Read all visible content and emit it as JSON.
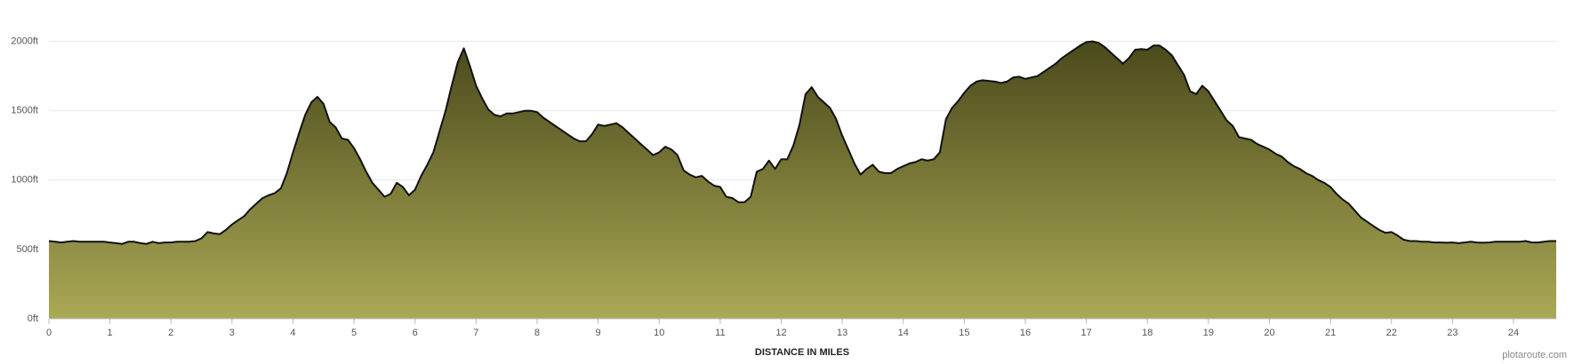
{
  "chart_data": {
    "type": "area",
    "x_label": "DISTANCE IN MILES",
    "credit": "plotaroute.com",
    "xlim": [
      0,
      24.7
    ],
    "ylim": [
      0,
      2100
    ],
    "xticks": [
      0,
      1,
      2,
      3,
      4,
      5,
      6,
      7,
      8,
      9,
      10,
      11,
      12,
      13,
      14,
      15,
      16,
      17,
      18,
      19,
      20,
      21,
      22,
      23,
      24
    ],
    "yticks": [
      {
        "value": 0,
        "label": "0ft"
      },
      {
        "value": 500,
        "label": "500ft"
      },
      {
        "value": 1000,
        "label": "1000ft"
      },
      {
        "value": 1500,
        "label": "1500ft"
      },
      {
        "value": 2000,
        "label": "2000ft"
      }
    ],
    "grid": true,
    "line_color": "#111111",
    "fill_top": "#4a491b",
    "fill_bottom": "#aaa955",
    "x": [
      0,
      0.1,
      0.2,
      0.3,
      0.4,
      0.5,
      0.6,
      0.7,
      0.8,
      0.9,
      1,
      1.1,
      1.2,
      1.3,
      1.4,
      1.5,
      1.6,
      1.7,
      1.8,
      1.9,
      2,
      2.1,
      2.2,
      2.3,
      2.4,
      2.5,
      2.6,
      2.7,
      2.8,
      2.9,
      3,
      3.1,
      3.2,
      3.3,
      3.4,
      3.5,
      3.6,
      3.7,
      3.8,
      3.9,
      4,
      4.1,
      4.2,
      4.3,
      4.4,
      4.5,
      4.6,
      4.7,
      4.8,
      4.9,
      5,
      5.1,
      5.2,
      5.3,
      5.4,
      5.5,
      5.6,
      5.7,
      5.8,
      5.9,
      6,
      6.1,
      6.2,
      6.3,
      6.4,
      6.5,
      6.6,
      6.7,
      6.8,
      6.9,
      7,
      7.1,
      7.2,
      7.3,
      7.4,
      7.5,
      7.6,
      7.7,
      7.8,
      7.9,
      8,
      8.1,
      8.2,
      8.3,
      8.4,
      8.5,
      8.6,
      8.7,
      8.8,
      8.9,
      9,
      9.1,
      9.2,
      9.3,
      9.4,
      9.5,
      9.6,
      9.7,
      9.8,
      9.9,
      10,
      10.1,
      10.2,
      10.3,
      10.4,
      10.5,
      10.6,
      10.7,
      10.8,
      10.9,
      11,
      11.1,
      11.2,
      11.3,
      11.4,
      11.5,
      11.6,
      11.7,
      11.8,
      11.9,
      12,
      12.1,
      12.2,
      12.3,
      12.4,
      12.5,
      12.6,
      12.7,
      12.8,
      12.9,
      13,
      13.1,
      13.2,
      13.3,
      13.4,
      13.5,
      13.6,
      13.7,
      13.8,
      13.9,
      14,
      14.1,
      14.2,
      14.3,
      14.4,
      14.5,
      14.6,
      14.7,
      14.8,
      14.9,
      15,
      15.1,
      15.2,
      15.3,
      15.4,
      15.5,
      15.6,
      15.7,
      15.8,
      15.9,
      16,
      16.1,
      16.2,
      16.3,
      16.4,
      16.5,
      16.6,
      16.7,
      16.8,
      16.9,
      17,
      17.1,
      17.2,
      17.3,
      17.4,
      17.5,
      17.6,
      17.7,
      17.8,
      17.9,
      18,
      18.1,
      18.2,
      18.3,
      18.4,
      18.5,
      18.6,
      18.7,
      18.8,
      18.9,
      19,
      19.1,
      19.2,
      19.3,
      19.4,
      19.5,
      19.6,
      19.7,
      19.8,
      19.9,
      20,
      20.1,
      20.2,
      20.3,
      20.4,
      20.5,
      20.6,
      20.7,
      20.8,
      20.9,
      21,
      21.1,
      21.2,
      21.3,
      21.4,
      21.5,
      21.6,
      21.7,
      21.8,
      21.9,
      22,
      22.1,
      22.2,
      22.3,
      22.4,
      22.5,
      22.6,
      22.7,
      22.8,
      22.9,
      23,
      23.1,
      23.2,
      23.3,
      23.4,
      23.5,
      23.6,
      23.7,
      23.8,
      23.9,
      24,
      24.1,
      24.2,
      24.3,
      24.4,
      24.5,
      24.6,
      24.7
    ],
    "values": [
      560,
      555,
      550,
      555,
      560,
      555,
      555,
      555,
      555,
      555,
      550,
      545,
      540,
      555,
      555,
      545,
      540,
      555,
      545,
      550,
      550,
      555,
      555,
      555,
      560,
      580,
      625,
      615,
      610,
      640,
      680,
      710,
      740,
      790,
      830,
      870,
      890,
      905,
      940,
      1050,
      1200,
      1340,
      1470,
      1560,
      1600,
      1550,
      1420,
      1380,
      1300,
      1290,
      1230,
      1150,
      1060,
      980,
      930,
      880,
      900,
      980,
      950,
      890,
      930,
      1030,
      1110,
      1200,
      1350,
      1500,
      1680,
      1850,
      1950,
      1820,
      1680,
      1590,
      1510,
      1470,
      1460,
      1480,
      1480,
      1490,
      1500,
      1500,
      1490,
      1450,
      1420,
      1390,
      1360,
      1330,
      1300,
      1280,
      1280,
      1330,
      1400,
      1390,
      1400,
      1410,
      1380,
      1340,
      1300,
      1260,
      1220,
      1180,
      1200,
      1240,
      1220,
      1180,
      1070,
      1040,
      1020,
      1030,
      990,
      960,
      950,
      880,
      870,
      840,
      840,
      880,
      1060,
      1080,
      1140,
      1080,
      1150,
      1150,
      1250,
      1400,
      1620,
      1670,
      1600,
      1560,
      1520,
      1440,
      1320,
      1220,
      1120,
      1040,
      1080,
      1110,
      1060,
      1050,
      1050,
      1080,
      1100,
      1120,
      1130,
      1150,
      1140,
      1150,
      1200,
      1440,
      1520,
      1570,
      1630,
      1680,
      1710,
      1720,
      1715,
      1710,
      1700,
      1710,
      1740,
      1745,
      1730,
      1740,
      1750,
      1780,
      1810,
      1840,
      1880,
      1910,
      1940,
      1970,
      1995,
      2000,
      1990,
      1960,
      1920,
      1880,
      1840,
      1880,
      1940,
      1945,
      1940,
      1970,
      1970,
      1940,
      1900,
      1830,
      1760,
      1640,
      1620,
      1680,
      1640,
      1570,
      1500,
      1430,
      1390,
      1310,
      1300,
      1290,
      1260,
      1240,
      1220,
      1190,
      1170,
      1130,
      1100,
      1080,
      1050,
      1030,
      1000,
      980,
      950,
      900,
      860,
      830,
      780,
      730,
      700,
      670,
      640,
      620,
      625,
      600,
      570,
      560,
      560,
      555,
      555,
      550,
      550,
      548,
      550,
      545,
      550,
      555,
      550,
      548,
      550,
      555,
      555,
      555,
      555,
      555,
      560,
      550,
      550,
      555,
      560,
      560
    ]
  }
}
